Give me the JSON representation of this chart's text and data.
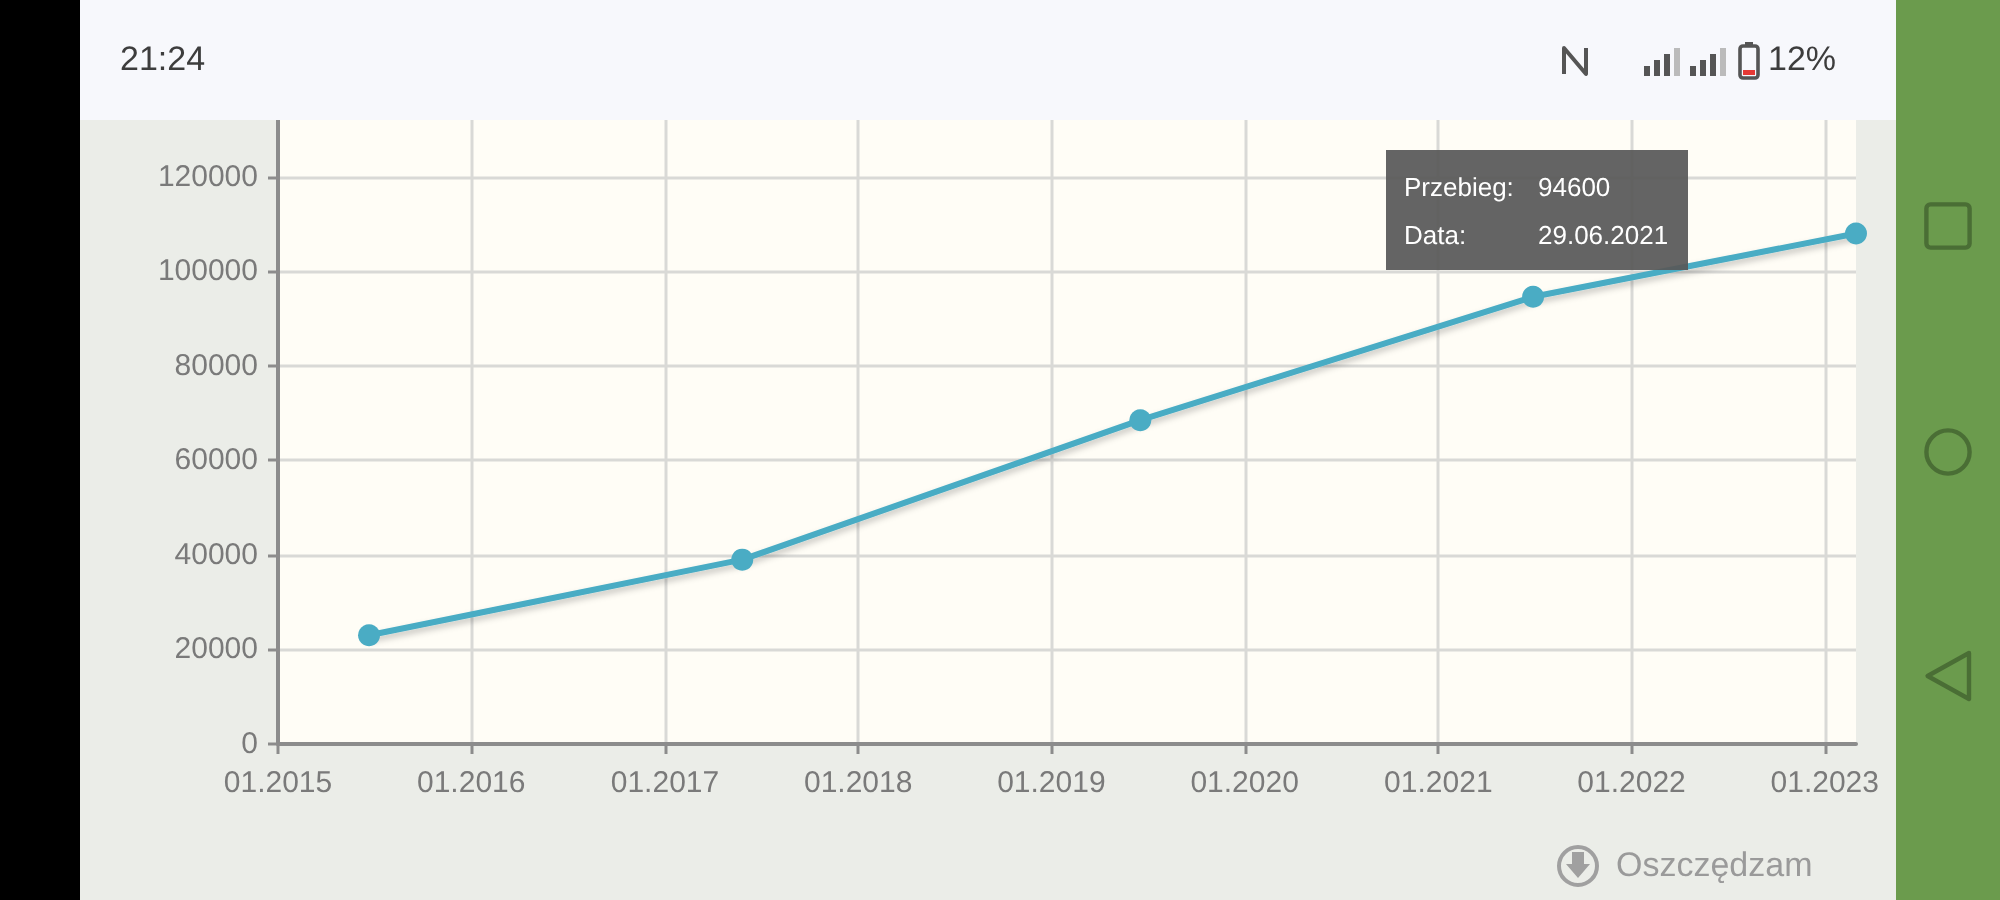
{
  "chart_data": {
    "type": "line",
    "x": [
      "2015-06-22",
      "2017-05-27",
      "2019-06-18",
      "2021-06-29",
      "2023-03"
    ],
    "values": [
      23000,
      39000,
      68500,
      94600,
      108000
    ],
    "color": "#4aacc4",
    "xlim": [
      "2015-01",
      "2023-03"
    ],
    "xticks": [
      {
        "value": "2015-01",
        "label": "01.2015"
      },
      {
        "value": "2016-01",
        "label": "01.2016"
      },
      {
        "value": "2017-01",
        "label": "01.2017"
      },
      {
        "value": "2018-01",
        "label": "01.2018"
      },
      {
        "value": "2019-01",
        "label": "01.2019"
      },
      {
        "value": "2020-01",
        "label": "01.2020"
      },
      {
        "value": "2021-01",
        "label": "01.2021"
      },
      {
        "value": "2022-01",
        "label": "01.2022"
      },
      {
        "value": "2023-01",
        "label": "01.2023"
      }
    ],
    "ylim": [
      0,
      132000
    ],
    "yticks": [
      0,
      20000,
      40000,
      60000,
      80000,
      100000,
      120000
    ],
    "grid": true,
    "marker": "circle",
    "line_style": "solid",
    "annotations": [
      "Przebieg: 94600",
      "Data: 29.06.2021",
      "21:24",
      "12%",
      "Oszczędzam"
    ]
  }
}
